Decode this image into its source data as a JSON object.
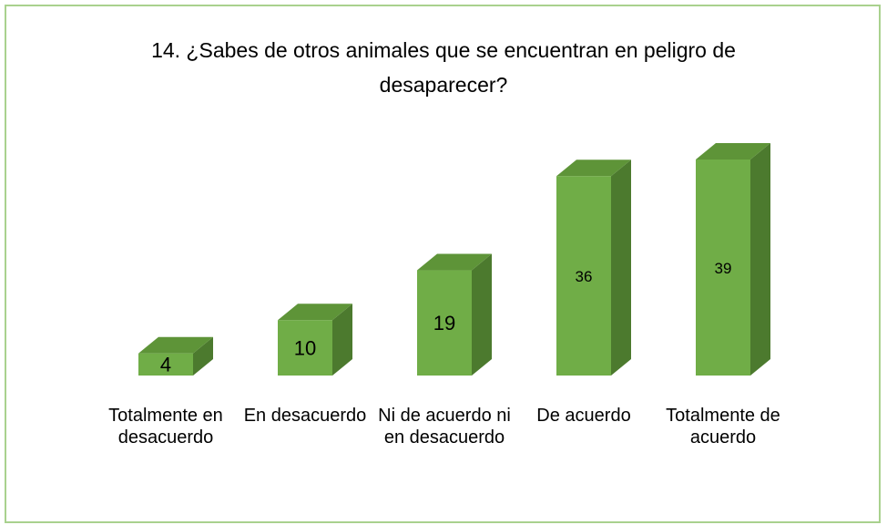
{
  "chart_data": {
    "type": "bar3d",
    "title": "14. ¿Sabes de otros animales que se encuentran en peligro de desaparecer?",
    "categories": [
      "Totalmente en desacuerdo",
      "En desacuerdo",
      "Ni de acuerdo ni en desacuerdo",
      "De acuerdo",
      "Totalmente de acuerdo"
    ],
    "values": [
      4,
      10,
      19,
      36,
      39
    ],
    "color": "#70ad47"
  }
}
